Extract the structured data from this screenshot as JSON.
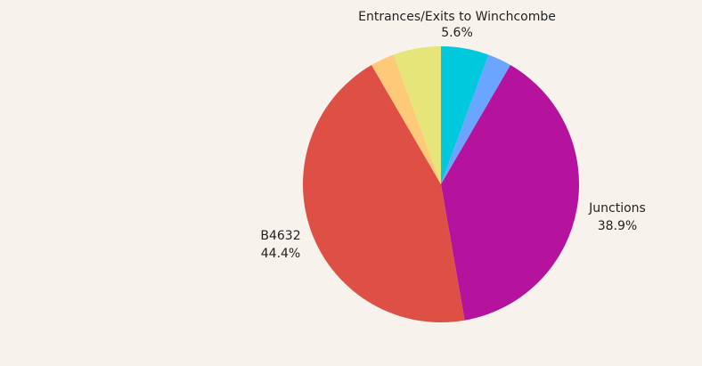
{
  "chart_data": {
    "type": "pie",
    "title": "",
    "start_angle_deg": 0,
    "direction": "clockwise",
    "slices": [
      {
        "label": "Entrances/Exits to Winchcombe",
        "value": 5.6,
        "percent_label": "5.6%",
        "color": "#00c8dd",
        "show_label": true
      },
      {
        "label": "",
        "value": 2.8,
        "percent_label": "",
        "color": "#6aa6ff",
        "show_label": false
      },
      {
        "label": "Junctions",
        "value": 38.9,
        "percent_label": "38.9%",
        "color": "#b5129d",
        "show_label": true
      },
      {
        "label": "B4632",
        "value": 44.4,
        "percent_label": "44.4%",
        "color": "#de5045",
        "show_label": true
      },
      {
        "label": "",
        "value": 2.8,
        "percent_label": "",
        "color": "#ffc97a",
        "show_label": false
      },
      {
        "label": "",
        "value": 5.6,
        "percent_label": "",
        "color": "#e5e57a",
        "show_label": false
      }
    ]
  }
}
